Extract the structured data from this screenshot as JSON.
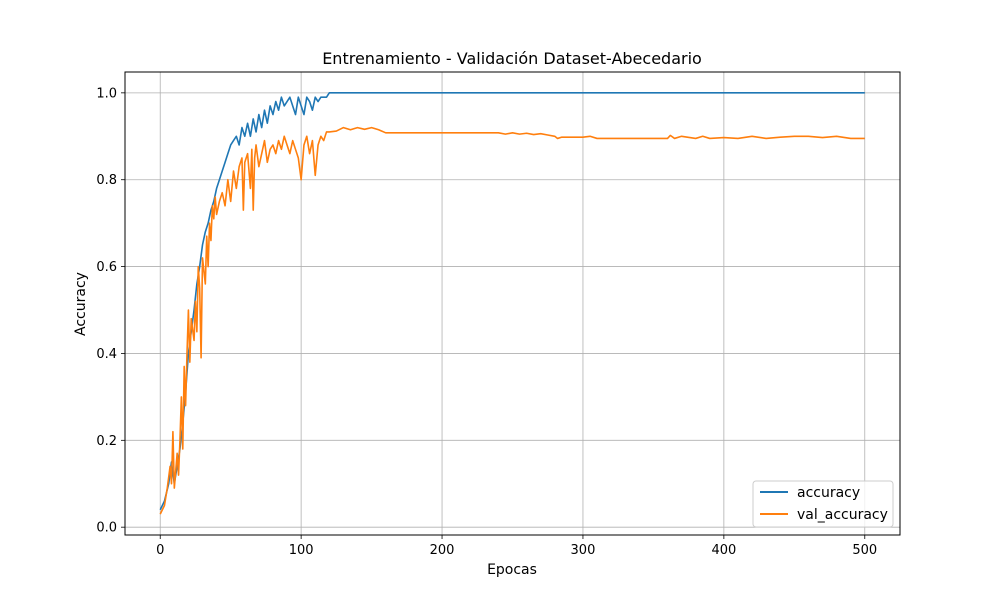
{
  "chart_data": {
    "type": "line",
    "title": "Entrenamiento - Validación Dataset-Abecedario",
    "xlabel": "Epocas",
    "ylabel": "Accuracy",
    "xlim": [
      -25,
      525
    ],
    "ylim": [
      -0.018,
      1.048
    ],
    "xticks": [
      0,
      100,
      200,
      300,
      400,
      500
    ],
    "yticks": [
      0.0,
      0.2,
      0.4,
      0.6,
      0.8,
      1.0
    ],
    "ytick_labels": [
      "0.0",
      "0.2",
      "0.4",
      "0.6",
      "0.8",
      "1.0"
    ],
    "grid": true,
    "legend_position": "lower-right",
    "series": [
      {
        "name": "accuracy",
        "color": "#1f77b4",
        "points": [
          [
            0,
            0.04
          ],
          [
            3,
            0.06
          ],
          [
            6,
            0.1
          ],
          [
            8,
            0.15
          ],
          [
            10,
            0.1
          ],
          [
            12,
            0.14
          ],
          [
            14,
            0.18
          ],
          [
            16,
            0.24
          ],
          [
            18,
            0.31
          ],
          [
            20,
            0.4
          ],
          [
            22,
            0.45
          ],
          [
            24,
            0.5
          ],
          [
            26,
            0.56
          ],
          [
            28,
            0.6
          ],
          [
            30,
            0.65
          ],
          [
            32,
            0.68
          ],
          [
            34,
            0.7
          ],
          [
            36,
            0.73
          ],
          [
            38,
            0.75
          ],
          [
            40,
            0.78
          ],
          [
            42,
            0.8
          ],
          [
            44,
            0.82
          ],
          [
            46,
            0.84
          ],
          [
            48,
            0.86
          ],
          [
            50,
            0.88
          ],
          [
            52,
            0.89
          ],
          [
            54,
            0.9
          ],
          [
            56,
            0.88
          ],
          [
            58,
            0.92
          ],
          [
            60,
            0.9
          ],
          [
            62,
            0.93
          ],
          [
            64,
            0.9
          ],
          [
            66,
            0.94
          ],
          [
            68,
            0.91
          ],
          [
            70,
            0.95
          ],
          [
            72,
            0.92
          ],
          [
            74,
            0.96
          ],
          [
            76,
            0.93
          ],
          [
            78,
            0.97
          ],
          [
            80,
            0.95
          ],
          [
            82,
            0.98
          ],
          [
            84,
            0.96
          ],
          [
            86,
            0.99
          ],
          [
            88,
            0.97
          ],
          [
            90,
            0.98
          ],
          [
            92,
            0.99
          ],
          [
            94,
            0.97
          ],
          [
            96,
            0.95
          ],
          [
            98,
            0.99
          ],
          [
            100,
            0.97
          ],
          [
            102,
            0.95
          ],
          [
            104,
            0.99
          ],
          [
            106,
            0.98
          ],
          [
            108,
            0.96
          ],
          [
            110,
            0.99
          ],
          [
            112,
            0.98
          ],
          [
            114,
            0.99
          ],
          [
            116,
            0.99
          ],
          [
            118,
            0.99
          ],
          [
            120,
            1.0
          ],
          [
            500,
            1.0
          ]
        ]
      },
      {
        "name": "val_accuracy",
        "color": "#ff7f0e",
        "points": [
          [
            0,
            0.03
          ],
          [
            3,
            0.05
          ],
          [
            5,
            0.09
          ],
          [
            7,
            0.14
          ],
          [
            8,
            0.1
          ],
          [
            9,
            0.22
          ],
          [
            10,
            0.09
          ],
          [
            12,
            0.17
          ],
          [
            13,
            0.12
          ],
          [
            14,
            0.2
          ],
          [
            15,
            0.3
          ],
          [
            16,
            0.18
          ],
          [
            17,
            0.37
          ],
          [
            18,
            0.28
          ],
          [
            19,
            0.4
          ],
          [
            20,
            0.5
          ],
          [
            21,
            0.38
          ],
          [
            22,
            0.48
          ],
          [
            24,
            0.43
          ],
          [
            25,
            0.52
          ],
          [
            26,
            0.45
          ],
          [
            27,
            0.6
          ],
          [
            28,
            0.55
          ],
          [
            29,
            0.39
          ],
          [
            30,
            0.62
          ],
          [
            32,
            0.56
          ],
          [
            33,
            0.67
          ],
          [
            34,
            0.6
          ],
          [
            35,
            0.7
          ],
          [
            36,
            0.66
          ],
          [
            37,
            0.74
          ],
          [
            38,
            0.71
          ],
          [
            39,
            0.76
          ],
          [
            40,
            0.72
          ],
          [
            42,
            0.75
          ],
          [
            44,
            0.77
          ],
          [
            46,
            0.74
          ],
          [
            48,
            0.8
          ],
          [
            50,
            0.75
          ],
          [
            52,
            0.82
          ],
          [
            54,
            0.78
          ],
          [
            56,
            0.83
          ],
          [
            58,
            0.85
          ],
          [
            59,
            0.73
          ],
          [
            60,
            0.84
          ],
          [
            62,
            0.86
          ],
          [
            64,
            0.78
          ],
          [
            65,
            0.87
          ],
          [
            66,
            0.73
          ],
          [
            67,
            0.85
          ],
          [
            68,
            0.88
          ],
          [
            70,
            0.83
          ],
          [
            72,
            0.86
          ],
          [
            74,
            0.89
          ],
          [
            76,
            0.84
          ],
          [
            78,
            0.87
          ],
          [
            80,
            0.88
          ],
          [
            82,
            0.86
          ],
          [
            84,
            0.89
          ],
          [
            86,
            0.87
          ],
          [
            88,
            0.9
          ],
          [
            90,
            0.88
          ],
          [
            92,
            0.86
          ],
          [
            94,
            0.89
          ],
          [
            96,
            0.87
          ],
          [
            98,
            0.85
          ],
          [
            100,
            0.8
          ],
          [
            102,
            0.88
          ],
          [
            104,
            0.9
          ],
          [
            106,
            0.86
          ],
          [
            108,
            0.89
          ],
          [
            110,
            0.81
          ],
          [
            112,
            0.88
          ],
          [
            114,
            0.9
          ],
          [
            116,
            0.89
          ],
          [
            118,
            0.91
          ],
          [
            120,
            0.91
          ],
          [
            125,
            0.912
          ],
          [
            130,
            0.92
          ],
          [
            135,
            0.915
          ],
          [
            140,
            0.92
          ],
          [
            145,
            0.916
          ],
          [
            150,
            0.92
          ],
          [
            155,
            0.915
          ],
          [
            160,
            0.908
          ],
          [
            180,
            0.908
          ],
          [
            200,
            0.908
          ],
          [
            220,
            0.908
          ],
          [
            240,
            0.908
          ],
          [
            245,
            0.905
          ],
          [
            250,
            0.908
          ],
          [
            255,
            0.905
          ],
          [
            260,
            0.907
          ],
          [
            265,
            0.904
          ],
          [
            270,
            0.906
          ],
          [
            275,
            0.903
          ],
          [
            280,
            0.9
          ],
          [
            282,
            0.895
          ],
          [
            285,
            0.898
          ],
          [
            300,
            0.898
          ],
          [
            305,
            0.9
          ],
          [
            310,
            0.895
          ],
          [
            320,
            0.895
          ],
          [
            340,
            0.895
          ],
          [
            360,
            0.895
          ],
          [
            362,
            0.902
          ],
          [
            365,
            0.895
          ],
          [
            370,
            0.9
          ],
          [
            380,
            0.895
          ],
          [
            385,
            0.9
          ],
          [
            390,
            0.895
          ],
          [
            400,
            0.897
          ],
          [
            410,
            0.895
          ],
          [
            420,
            0.9
          ],
          [
            430,
            0.895
          ],
          [
            440,
            0.898
          ],
          [
            450,
            0.9
          ],
          [
            460,
            0.9
          ],
          [
            470,
            0.897
          ],
          [
            480,
            0.9
          ],
          [
            490,
            0.895
          ],
          [
            500,
            0.895
          ]
        ]
      }
    ]
  }
}
